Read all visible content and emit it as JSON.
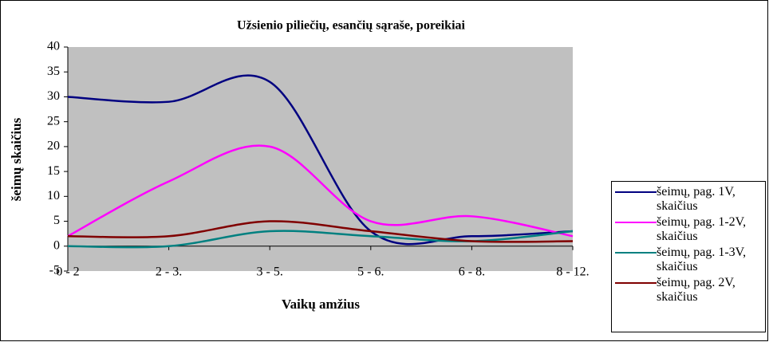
{
  "chart_data": {
    "type": "line",
    "title": "Užsienio piliečių, esančių sąraše, poreikiai",
    "x_label": "Vaikų amžius",
    "y_label": "šeimų skaičius",
    "categories": [
      "0 - 2",
      "2 - 3.",
      "3 - 5.",
      "5 - 6.",
      "6 - 8.",
      "8 - 12."
    ],
    "series": [
      {
        "name": "šeimų, pag. 1V, skaičius",
        "color": "#000080",
        "values": [
          30,
          29,
          33,
          3,
          2,
          3
        ]
      },
      {
        "name": "šeimų, pag. 1-2V, skaičius",
        "color": "#ff00ff",
        "values": [
          2,
          13,
          20,
          5,
          6,
          2
        ]
      },
      {
        "name": "šeimų, pag. 1-3V, skaičius",
        "color": "#008080",
        "values": [
          0,
          0,
          3,
          2,
          1,
          3
        ]
      },
      {
        "name": "šeimų, pag. 2V, skaičius",
        "color": "#800000",
        "values": [
          2,
          2,
          5,
          3,
          1,
          1
        ]
      }
    ],
    "ylim": [
      -5,
      40
    ],
    "yticks": [
      -5,
      0,
      5,
      10,
      15,
      20,
      25,
      30,
      35,
      40
    ],
    "smooth": true
  }
}
